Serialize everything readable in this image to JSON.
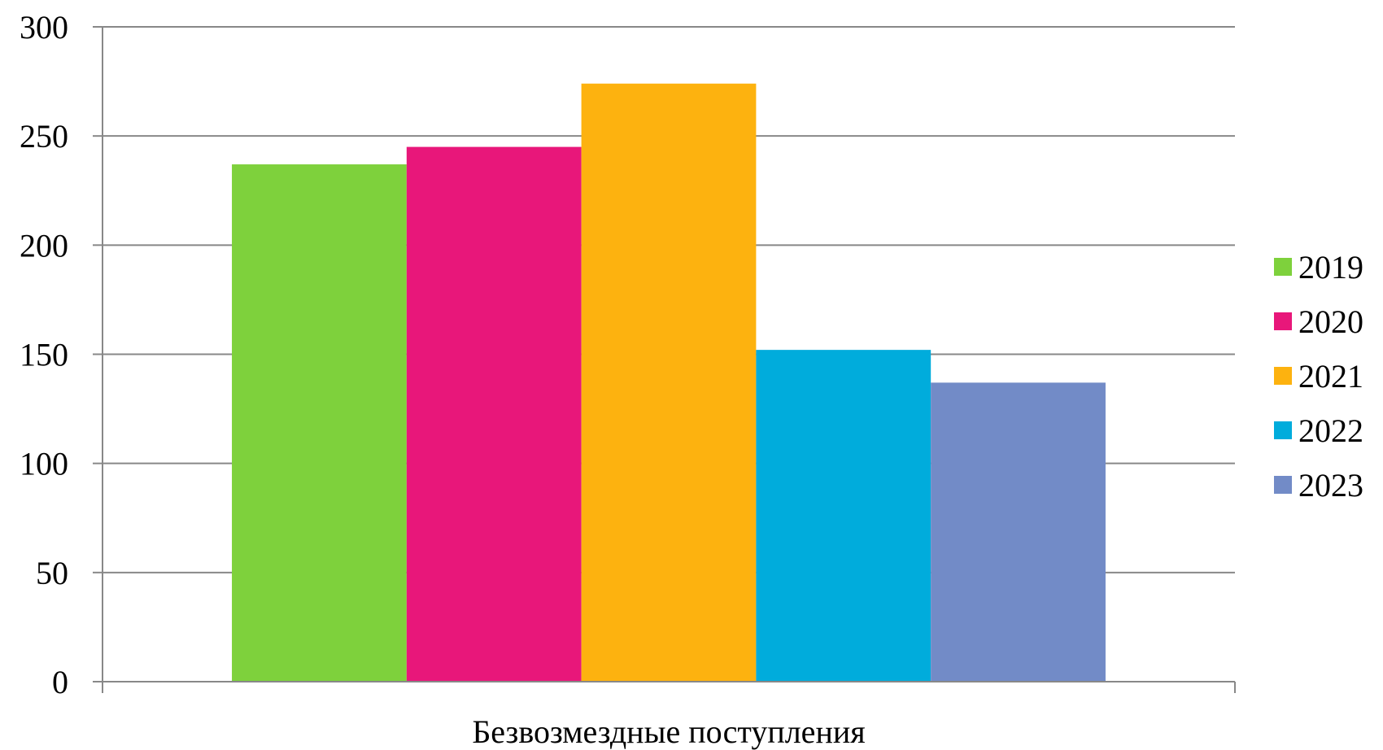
{
  "chart_data": {
    "type": "bar",
    "categories": [
      "Безвозмездные поступления"
    ],
    "series": [
      {
        "name": "2019",
        "values": [
          237
        ],
        "color": "#7ed13c"
      },
      {
        "name": "2020",
        "values": [
          245
        ],
        "color": "#e8177a"
      },
      {
        "name": "2021",
        "values": [
          274
        ],
        "color": "#fdb20f"
      },
      {
        "name": "2022",
        "values": [
          152
        ],
        "color": "#00acdc"
      },
      {
        "name": "2023",
        "values": [
          137
        ],
        "color": "#728bc7"
      }
    ],
    "title": "",
    "xlabel": "",
    "ylabel": "",
    "ylim": [
      0,
      300
    ],
    "yticks": [
      0,
      50,
      100,
      150,
      200,
      250,
      300
    ],
    "grid": true,
    "legend": "right"
  }
}
